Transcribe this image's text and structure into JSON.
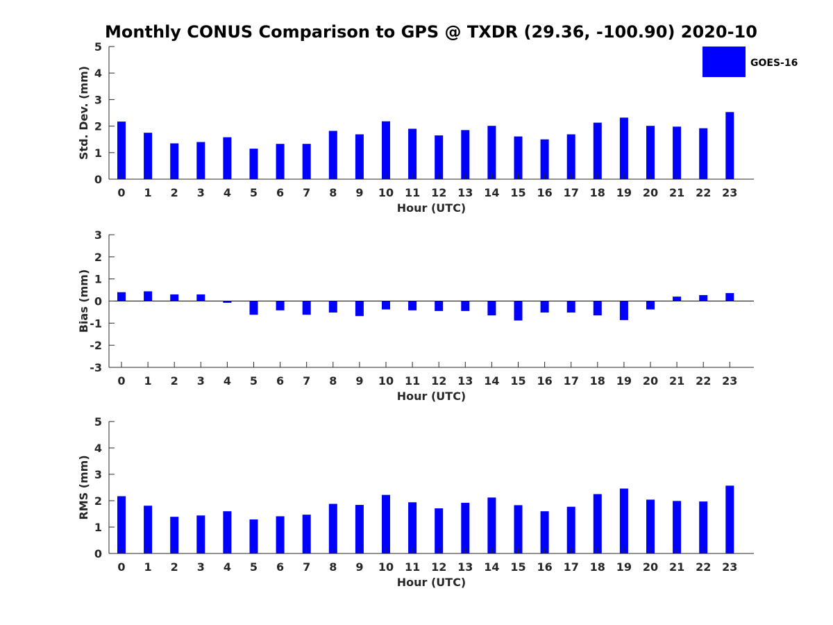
{
  "title": "Monthly CONUS Comparison to GPS @ TXDR (29.36, -100.90) 2020-10",
  "bar_color": "#0000ff",
  "legend": {
    "label": "GOES-16"
  },
  "chart_data": [
    {
      "type": "bar",
      "xlabel": "Hour (UTC)",
      "ylabel": "Std. Dev. (mm)",
      "ylim": [
        0,
        5
      ],
      "yticks": [
        0,
        1,
        2,
        3,
        4,
        5
      ],
      "ytick_labels": [
        "0",
        "1",
        "2",
        "3",
        "4",
        "5"
      ],
      "categories": [
        "0",
        "1",
        "2",
        "3",
        "4",
        "5",
        "6",
        "7",
        "8",
        "9",
        "10",
        "11",
        "12",
        "13",
        "14",
        "15",
        "16",
        "17",
        "18",
        "19",
        "20",
        "21",
        "22",
        "23"
      ],
      "series": [
        {
          "name": "GOES-16",
          "values": [
            2.17,
            1.75,
            1.35,
            1.4,
            1.58,
            1.15,
            1.33,
            1.33,
            1.82,
            1.69,
            2.18,
            1.9,
            1.65,
            1.85,
            2.01,
            1.61,
            1.5,
            1.69,
            2.13,
            2.32,
            2.01,
            1.98,
            1.92,
            2.53
          ]
        }
      ]
    },
    {
      "type": "bar",
      "xlabel": "Hour (UTC)",
      "ylabel": "Bias (mm)",
      "ylim": [
        -3,
        3
      ],
      "yticks": [
        -3,
        -2,
        -1,
        0,
        1,
        2,
        3
      ],
      "ytick_labels": [
        "-3",
        "-2",
        "-1",
        "0",
        "1",
        "2",
        "3"
      ],
      "zero_line": true,
      "categories": [
        "0",
        "1",
        "2",
        "3",
        "4",
        "5",
        "6",
        "7",
        "8",
        "9",
        "10",
        "11",
        "12",
        "13",
        "14",
        "15",
        "16",
        "17",
        "18",
        "19",
        "20",
        "21",
        "22",
        "23"
      ],
      "series": [
        {
          "name": "GOES-16",
          "values": [
            0.4,
            0.44,
            0.3,
            0.3,
            -0.08,
            -0.62,
            -0.42,
            -0.62,
            -0.52,
            -0.68,
            -0.38,
            -0.42,
            -0.45,
            -0.45,
            -0.65,
            -0.88,
            -0.52,
            -0.52,
            -0.65,
            -0.86,
            -0.38,
            0.2,
            0.27,
            0.36
          ]
        }
      ]
    },
    {
      "type": "bar",
      "xlabel": "Hour (UTC)",
      "ylabel": "RMS (mm)",
      "ylim": [
        0,
        5
      ],
      "yticks": [
        0,
        1,
        2,
        3,
        4,
        5
      ],
      "ytick_labels": [
        "0",
        "1",
        "2",
        "3",
        "4",
        "5"
      ],
      "categories": [
        "0",
        "1",
        "2",
        "3",
        "4",
        "5",
        "6",
        "7",
        "8",
        "9",
        "10",
        "11",
        "12",
        "13",
        "14",
        "15",
        "16",
        "17",
        "18",
        "19",
        "20",
        "21",
        "22",
        "23"
      ],
      "series": [
        {
          "name": "GOES-16",
          "values": [
            2.17,
            1.81,
            1.39,
            1.44,
            1.6,
            1.29,
            1.41,
            1.47,
            1.88,
            1.84,
            2.22,
            1.94,
            1.71,
            1.92,
            2.12,
            1.83,
            1.6,
            1.77,
            2.25,
            2.46,
            2.04,
            1.99,
            1.97,
            2.57
          ]
        }
      ]
    }
  ]
}
